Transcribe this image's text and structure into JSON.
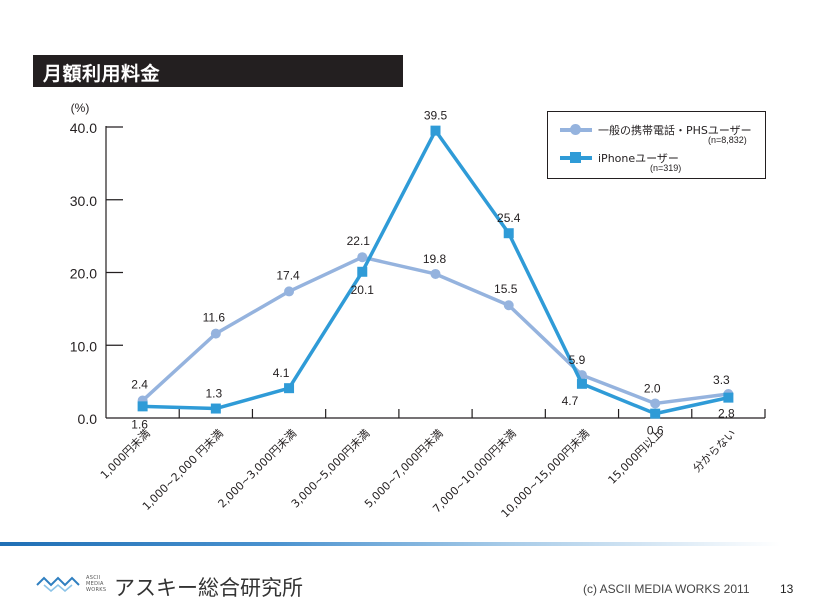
{
  "slide": {
    "title": "月額利用料金",
    "footer": {
      "logo_small": [
        "ASCII",
        "MEDIA",
        "WORKS"
      ],
      "logo_text": "アスキー総合研究所",
      "copyright": "(c) ASCII MEDIA WORKS 2011",
      "page_number": "13"
    }
  },
  "chart_data": {
    "type": "line",
    "title": "月額利用料金",
    "ylabel": "(%)",
    "xlabel": "",
    "ylim": [
      0,
      40
    ],
    "yticks": [
      0,
      10,
      20,
      30,
      40
    ],
    "ytick_labels": [
      "0.0",
      "10.0",
      "20.0",
      "30.0",
      "40.0"
    ],
    "grid": false,
    "legend_position": "top-right",
    "categories": [
      "1,000円未満",
      "1,000~2,000 円未満",
      "2,000~3,000円未満",
      "3,000~5,000円未満",
      "5,000~7,000円未満",
      "7,000~10,000円未満",
      "10,000~15,000円未満",
      "15,000円以上",
      "分からない"
    ],
    "series": [
      {
        "name": "一般の携帯電話・PHSユーザー",
        "n_label": "(n=8,832)",
        "marker": "circle",
        "color": "#95b3de",
        "values": [
          2.4,
          11.6,
          17.4,
          22.1,
          19.8,
          15.5,
          5.9,
          2.0,
          3.3
        ],
        "labels": [
          "2.4",
          "11.6",
          "17.4",
          "22.1",
          "19.8",
          "15.5",
          "5.9",
          "2.0",
          "3.3"
        ]
      },
      {
        "name": "iPhoneユーザー",
        "n_label": "(n=319)",
        "marker": "square",
        "color": "#2f9bd7",
        "values": [
          1.6,
          1.3,
          4.1,
          20.1,
          39.5,
          25.4,
          4.7,
          0.6,
          2.8
        ],
        "labels": [
          "1.6",
          "1.3",
          "4.1",
          "20.1",
          "39.5",
          "25.4",
          "4.7",
          "0.6",
          "2.8"
        ]
      }
    ]
  }
}
